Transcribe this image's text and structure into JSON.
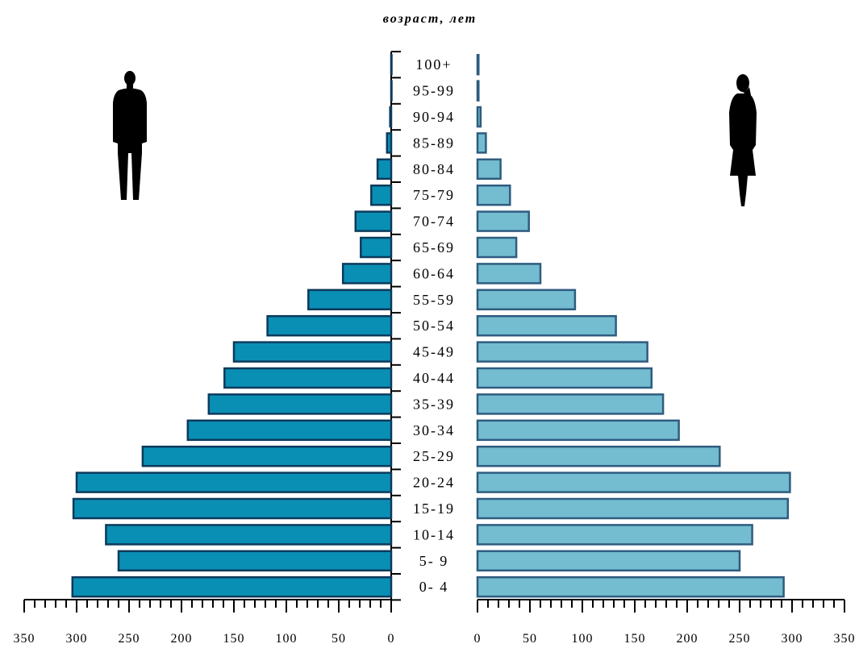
{
  "chart_data": {
    "type": "bar",
    "subtype": "population-pyramid",
    "title": "возраст, лет",
    "categories": [
      "0- 4",
      "5- 9",
      "10-14",
      "15-19",
      "20-24",
      "25-29",
      "30-34",
      "35-39",
      "40-44",
      "45-49",
      "50-54",
      "55-59",
      "60-64",
      "65-69",
      "70-74",
      "75-79",
      "80-84",
      "85-89",
      "90-94",
      "95-99",
      "100+"
    ],
    "series": [
      {
        "side": "left",
        "values": [
          304,
          260,
          272,
          303,
          300,
          237,
          194,
          174,
          159,
          150,
          118,
          79,
          46,
          29,
          34,
          19,
          13,
          4,
          1,
          0,
          0
        ]
      },
      {
        "side": "right",
        "values": [
          292,
          250,
          262,
          296,
          298,
          231,
          192,
          177,
          166,
          162,
          132,
          93,
          60,
          37,
          49,
          31,
          22,
          8,
          3,
          1,
          1
        ]
      }
    ],
    "left_axis": {
      "ticks": [
        "350",
        "300",
        "250",
        "200",
        "150",
        "100",
        "50",
        "0"
      ],
      "range": [
        0,
        350
      ]
    },
    "right_axis": {
      "ticks": [
        "0",
        "50",
        "100",
        "150",
        "200",
        "250",
        "300",
        "350"
      ],
      "range": [
        0,
        350
      ]
    },
    "colors": {
      "left": "#0a8fb4",
      "right": "#74bccf",
      "left_border": "#0c3a5c",
      "right_border": "#2e5c80"
    },
    "icons": {
      "left": "man-silhouette-icon",
      "right": "woman-silhouette-icon"
    }
  }
}
